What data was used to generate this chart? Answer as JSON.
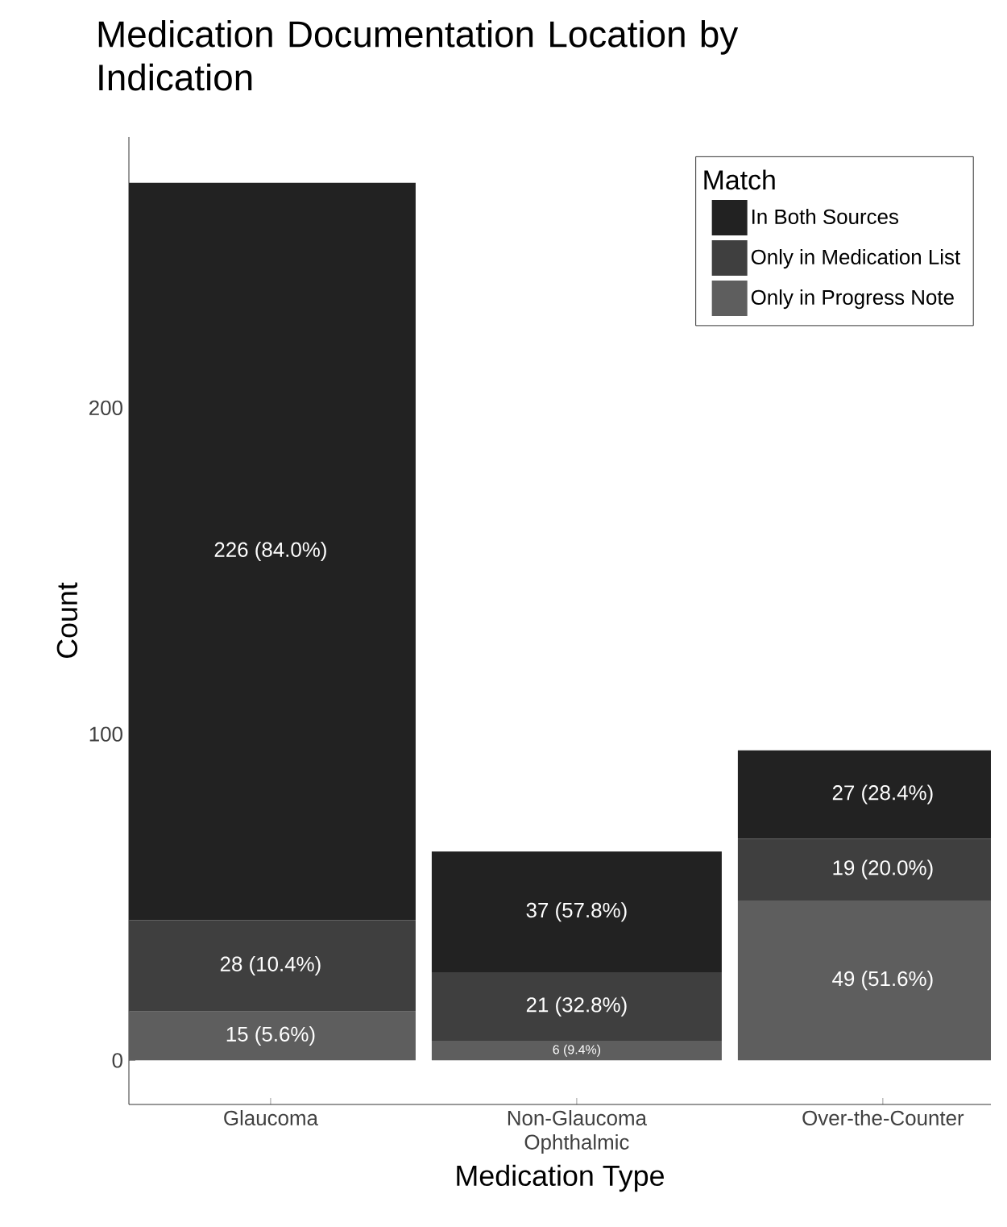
{
  "chart_data": {
    "type": "bar",
    "title": "Medication Documentation Location by Indication",
    "xlabel": "Medication Type",
    "ylabel": "Count",
    "legend_title": "Match",
    "categories": [
      "Glaucoma",
      "Non-Glaucoma Ophthalmic",
      "Over-the-Counter"
    ],
    "stacked": true,
    "ylim": [
      -13.5,
      283
    ],
    "yticks": [
      0,
      100,
      200
    ],
    "legend": "top right",
    "series": [
      {
        "name": "Only in Progress Note",
        "color": "#5e5e5e",
        "values": [
          15,
          6,
          49
        ],
        "value_labels": [
          "15 (5.6%)",
          "6 (9.4%)",
          "49 (51.6%)"
        ]
      },
      {
        "name": "Only in Medication List",
        "color": "#3f3f3f",
        "values": [
          28,
          21,
          19
        ],
        "value_labels": [
          "28 (10.4%)",
          "21 (32.8%)",
          "19 (20.0%)"
        ]
      },
      {
        "name": "In Both Sources",
        "color": "#222222",
        "values": [
          226,
          37,
          27
        ],
        "value_labels": [
          "226 (84.0%)",
          "37 (57.8%)",
          "27 (28.4%)"
        ]
      }
    ]
  }
}
